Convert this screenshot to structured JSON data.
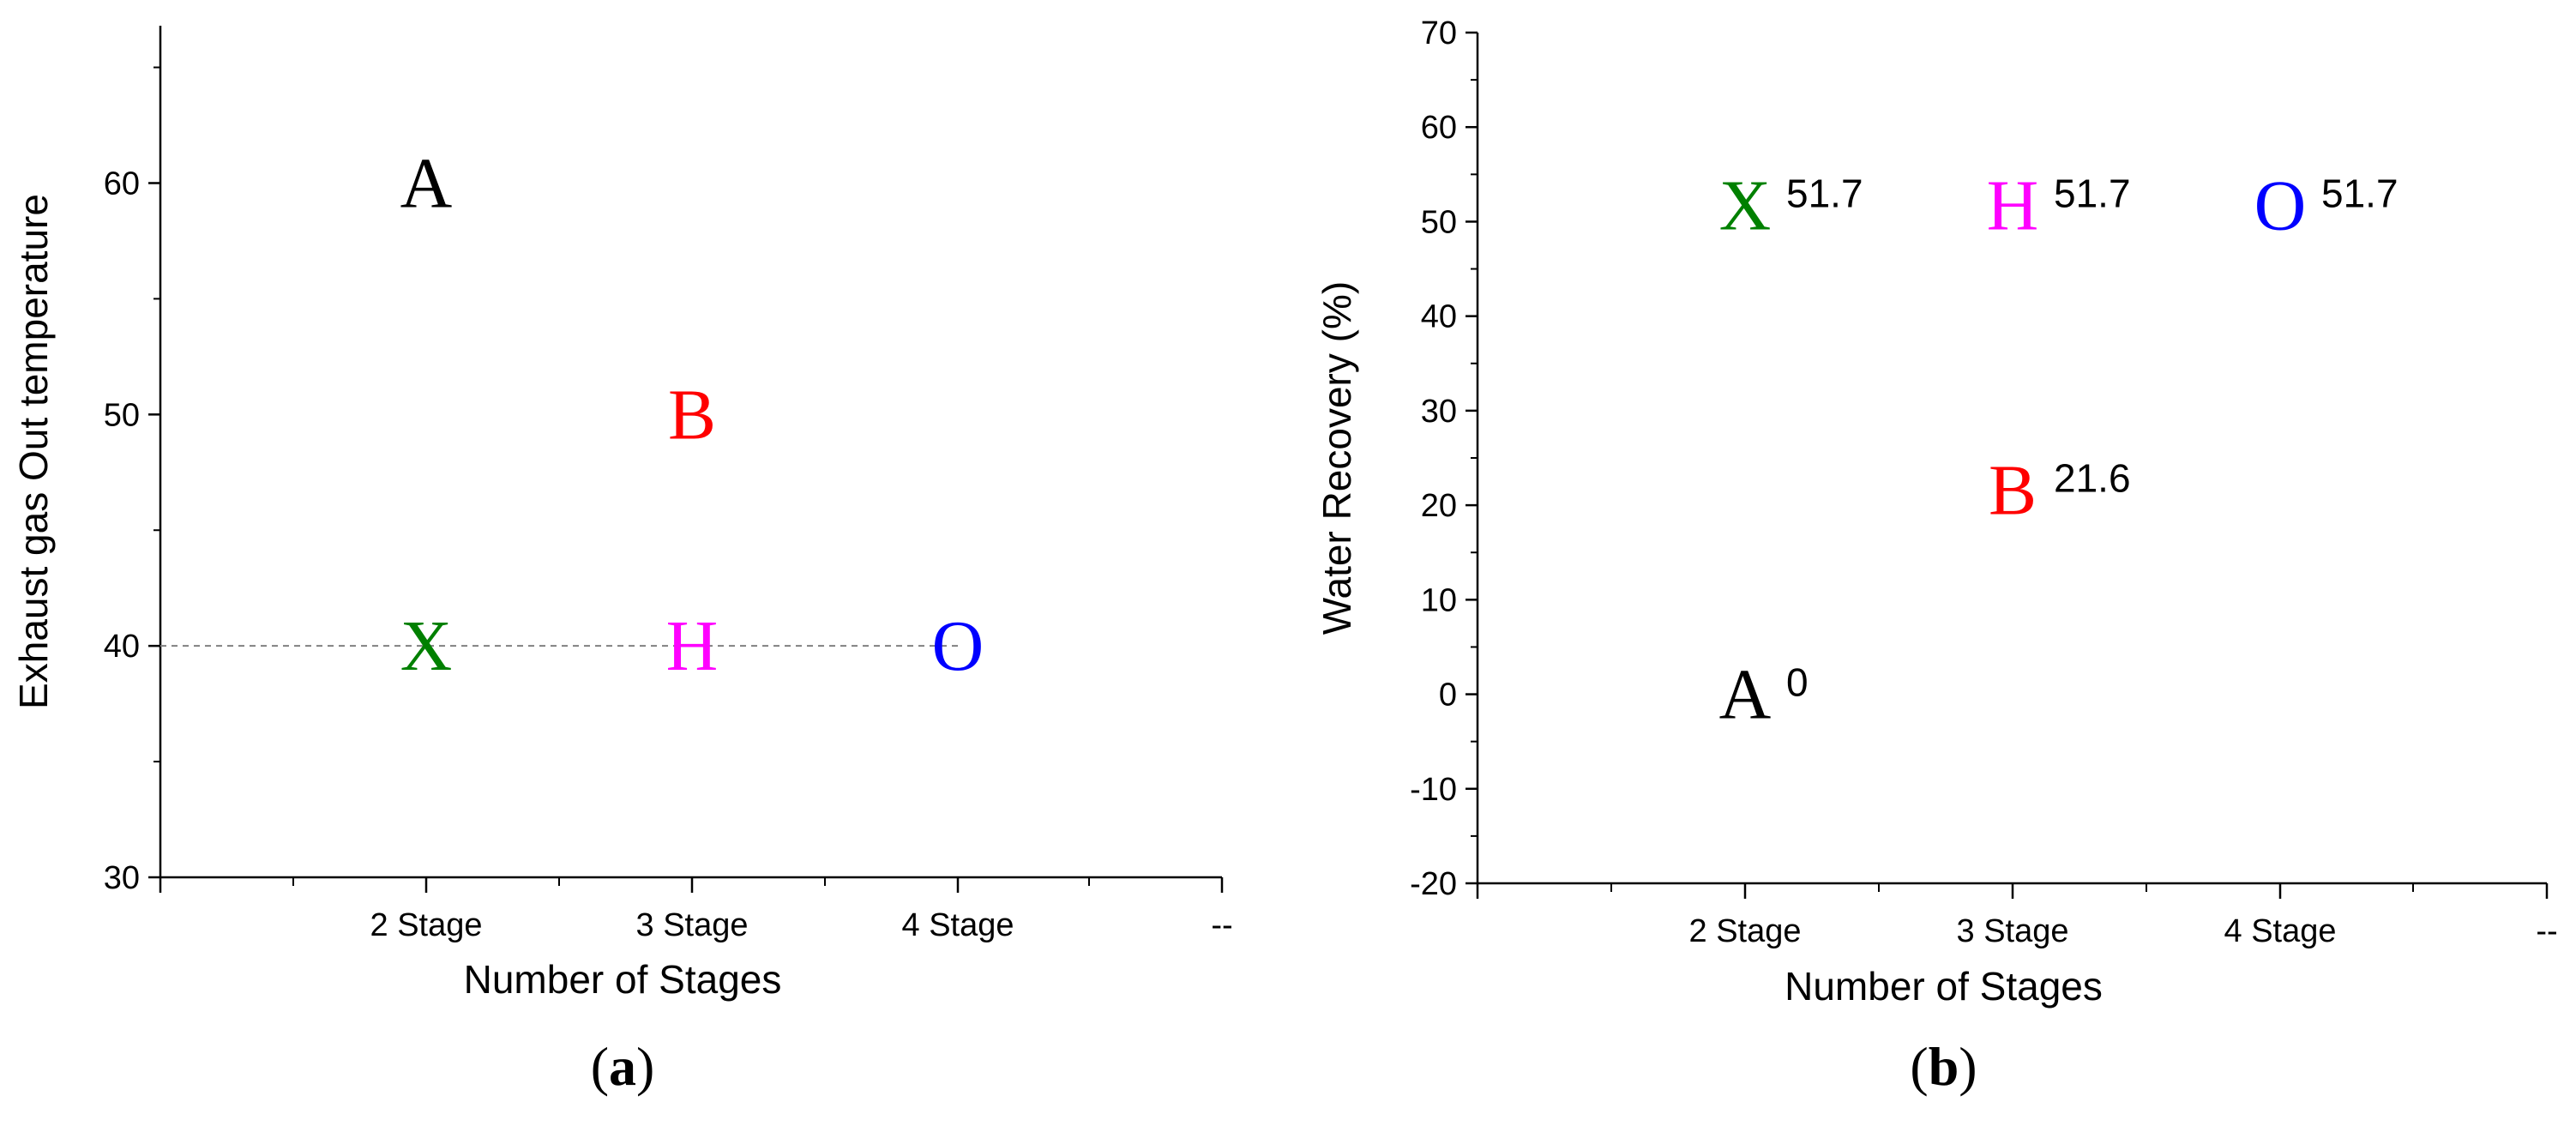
{
  "chart_data": [
    {
      "type": "scatter",
      "panel_label": {
        "open": "(",
        "letter": "a",
        "close": ")"
      },
      "xlabel": "Number of Stages",
      "ylabel": "Exhaust gas Out temperature",
      "categories": [
        "2 Stage",
        "3 Stage",
        "4 Stage",
        "--"
      ],
      "ylim": [
        30,
        66.8
      ],
      "yticks": [
        30,
        40,
        50,
        60
      ],
      "reference_line": {
        "y": 40,
        "style": "dashed",
        "color": "#808080"
      },
      "points": [
        {
          "label": "A",
          "category": "2 Stage",
          "y": 60,
          "color": "#000000"
        },
        {
          "label": "B",
          "category": "3 Stage",
          "y": 50,
          "color": "#ff0000"
        },
        {
          "label": "X",
          "category": "2 Stage",
          "y": 40,
          "color": "#008000"
        },
        {
          "label": "H",
          "category": "3 Stage",
          "y": 40,
          "color": "#ff00ff"
        },
        {
          "label": "O",
          "category": "4 Stage",
          "y": 40,
          "color": "#0000ff"
        }
      ],
      "grid": false
    },
    {
      "type": "scatter",
      "panel_label": {
        "open": "(",
        "letter": "b",
        "close": ")"
      },
      "xlabel": "Number of Stages",
      "ylabel": "Water Recovery (%)",
      "categories": [
        "2 Stage",
        "3 Stage",
        "4 Stage",
        "--"
      ],
      "ylim": [
        -20,
        70
      ],
      "yticks": [
        -20,
        -10,
        0,
        10,
        20,
        30,
        40,
        50,
        60,
        70
      ],
      "points": [
        {
          "label": "X",
          "category": "2 Stage",
          "y": 51.7,
          "value_label": "51.7",
          "color": "#008000"
        },
        {
          "label": "H",
          "category": "3 Stage",
          "y": 51.7,
          "value_label": "51.7",
          "color": "#ff00ff"
        },
        {
          "label": "O",
          "category": "4 Stage",
          "y": 51.7,
          "value_label": "51.7",
          "color": "#0000ff"
        },
        {
          "label": "B",
          "category": "3 Stage",
          "y": 21.6,
          "value_label": "21.6",
          "color": "#ff0000"
        },
        {
          "label": "A",
          "category": "2 Stage",
          "y": 0,
          "value_label": "0",
          "color": "#000000"
        }
      ],
      "grid": false
    }
  ]
}
